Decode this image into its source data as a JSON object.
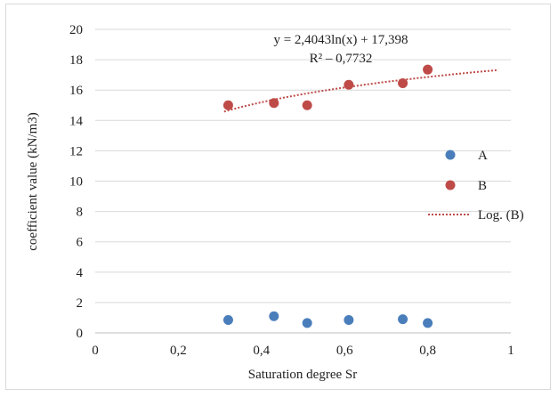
{
  "chart_data": {
    "type": "scatter",
    "xlabel": "Saturation degree Sr",
    "ylabel": "coefficient value (kN/m3)",
    "xlim": [
      0,
      1
    ],
    "ylim": [
      0,
      20
    ],
    "x_ticks": [
      "0",
      "0,2",
      "0,4",
      "0,6",
      "0,8",
      "1"
    ],
    "x_tick_values": [
      0,
      0.2,
      0.4,
      0.6,
      0.8,
      1.0
    ],
    "y_ticks": [
      "0",
      "2",
      "4",
      "6",
      "8",
      "10",
      "12",
      "14",
      "16",
      "18",
      "20"
    ],
    "y_tick_values": [
      0,
      2,
      4,
      6,
      8,
      10,
      12,
      14,
      16,
      18,
      20
    ],
    "grid": "horizontal",
    "legend_position": "right",
    "series": [
      {
        "name": "A",
        "color": "#4a7ebb",
        "x": [
          0.32,
          0.43,
          0.51,
          0.61,
          0.74,
          0.8
        ],
        "y": [
          0.85,
          1.1,
          0.65,
          0.85,
          0.9,
          0.65
        ]
      },
      {
        "name": "B",
        "color": "#be4b48",
        "x": [
          0.32,
          0.43,
          0.51,
          0.61,
          0.74,
          0.8
        ],
        "y": [
          15.0,
          15.15,
          15.0,
          16.35,
          16.45,
          17.35
        ]
      }
    ],
    "trendline": {
      "name": "Log. (B)",
      "color": "#be4b48",
      "style": "dotted",
      "a": 2.4043,
      "b": 17.398,
      "x_range": [
        0.31,
        0.97
      ],
      "equation": "y = 2,4043ln(x) + 17,398",
      "r2": "R² – 0,7732"
    }
  }
}
